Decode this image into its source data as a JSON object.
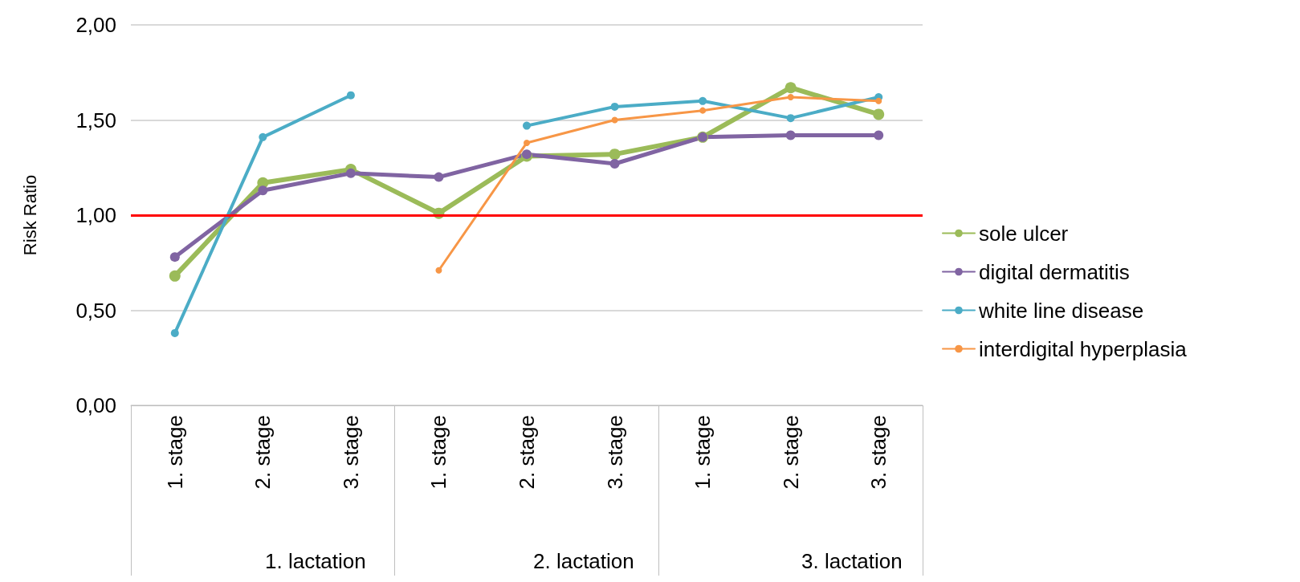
{
  "chart_data": {
    "type": "line",
    "ylabel": "Risk Ratio",
    "categories": [
      "1. stage",
      "2. stage",
      "3. stage",
      "1. stage",
      "2. stage",
      "3. stage",
      "1. stage",
      "2. stage",
      "3. stage"
    ],
    "annotations": [
      "1. lactation",
      "2. lactation",
      "3. lactation"
    ],
    "series": [
      {
        "name": "sole ulcer",
        "color": "#9bbb59",
        "values": [
          0.68,
          1.17,
          1.24,
          1.01,
          1.31,
          1.32,
          1.41,
          1.67,
          1.53
        ]
      },
      {
        "name": "digital dermatitis",
        "color": "#8064a2",
        "values": [
          0.78,
          1.13,
          1.22,
          1.2,
          1.32,
          1.27,
          1.41,
          1.42,
          1.42
        ]
      },
      {
        "name": "white line disease",
        "color": "#4bacc6",
        "values": [
          0.38,
          1.41,
          1.63,
          null,
          1.47,
          1.57,
          1.6,
          1.51,
          1.62
        ]
      },
      {
        "name": "interdigital hyperplasia",
        "color": "#f79646",
        "values": [
          null,
          null,
          null,
          0.71,
          1.38,
          1.5,
          1.55,
          1.62,
          1.6
        ]
      }
    ],
    "ylim": [
      0,
      2
    ],
    "yticks": [
      {
        "value": 0,
        "label": "0,00"
      },
      {
        "value": 0.5,
        "label": "0,50"
      },
      {
        "value": 1,
        "label": "1,00"
      },
      {
        "value": 1.5,
        "label": "1,50"
      },
      {
        "value": 2,
        "label": "2,00"
      }
    ],
    "ref_lines": [
      {
        "axis": "y",
        "value": 1,
        "color": "#ff0000"
      }
    ],
    "grid": "y",
    "legend": "right",
    "marker": "circle",
    "line_style": "solid"
  }
}
